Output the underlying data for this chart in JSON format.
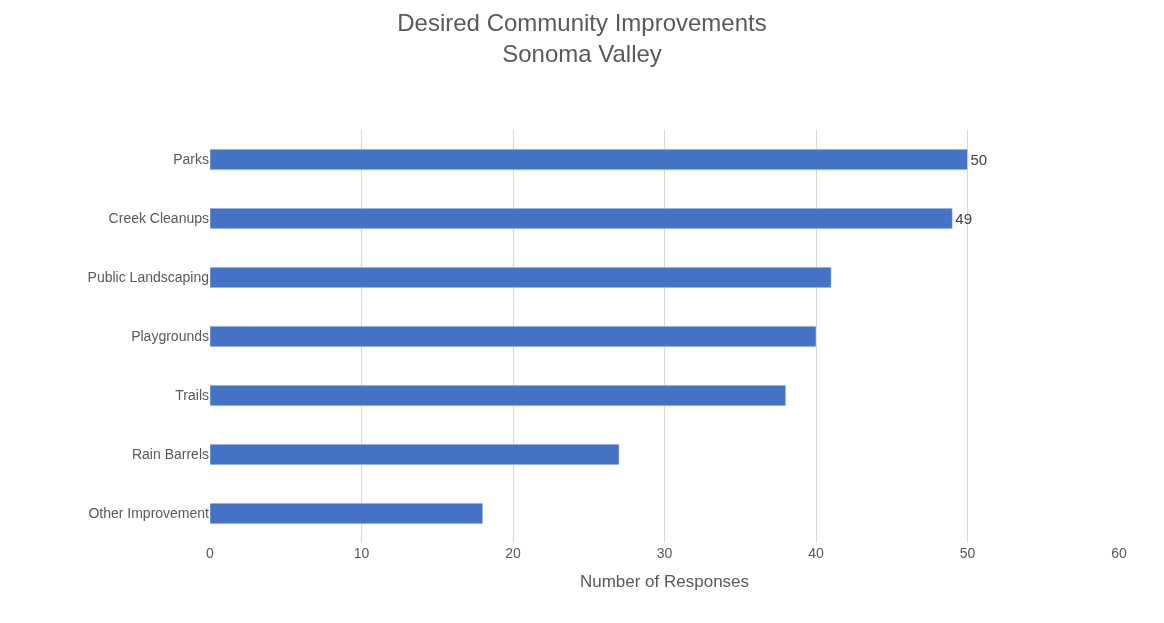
{
  "chart_data": {
    "type": "bar",
    "orientation": "horizontal",
    "title": "Desired Community Improvements",
    "subtitle": "Sonoma Valley",
    "xlabel": "Number of Responses",
    "categories": [
      "Parks",
      "Creek Cleanups",
      "Public Landscaping",
      "Playgrounds",
      "Trails",
      "Rain Barrels",
      "Other Improvement"
    ],
    "values": [
      50,
      49,
      41,
      40,
      38,
      27,
      18
    ],
    "value_labels": [
      "50",
      "49",
      null,
      null,
      null,
      null,
      null
    ],
    "color": "#4472c4",
    "xlim": [
      0,
      60
    ],
    "xticks": [
      0,
      10,
      20,
      30,
      40,
      50,
      60
    ],
    "grid": "x"
  }
}
